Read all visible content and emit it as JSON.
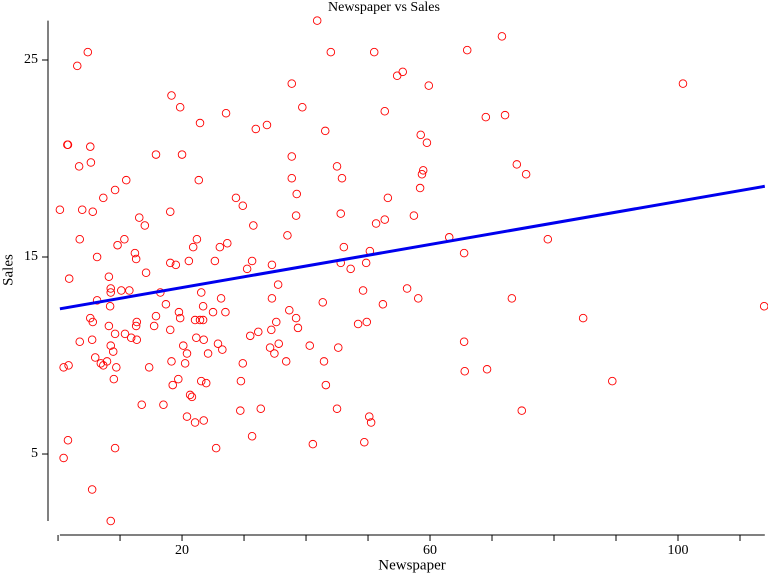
{
  "chart_data": {
    "type": "scatter",
    "title": "Newspaper vs Sales",
    "x_label": "Newspaper",
    "y_label": "Sales",
    "point_color": "#ff0000",
    "fit_color": "#0000ee",
    "xlim": [
      0.3,
      114
    ],
    "ylim": [
      1.6,
      27
    ],
    "xticks": [
      20,
      60,
      100
    ],
    "xminor_ticks": [
      0,
      10,
      30,
      40,
      50,
      70,
      80,
      90,
      110
    ],
    "yticks": [
      5,
      15,
      25
    ],
    "fit": {
      "x": [
        0.3,
        114
      ],
      "y": [
        12.37,
        18.59
      ]
    },
    "x": [
      0.3,
      0.9,
      0.9,
      1.6,
      1.7,
      1.8,
      1.5,
      1.6,
      3.1,
      3.4,
      3.5,
      3.5,
      3.9,
      4.8,
      5.2,
      5.3,
      5.2,
      5.6,
      5.6,
      5.5,
      6.0,
      5.5,
      6.3,
      6.3,
      6.9,
      7.3,
      7.3,
      7.9,
      8.2,
      8.4,
      8.5,
      8.5,
      8.2,
      8.5,
      8.5,
      8.9,
      9.2,
      9.0,
      9.4,
      9.2,
      9.2,
      9.6,
      10.2,
      10.7,
      11.0,
      10.8,
      11.5,
      11.8,
      12.6,
      12.7,
      12.4,
      12.6,
      12.7,
      13.1,
      13.5,
      14.0,
      14.2,
      14.7,
      15.5,
      15.8,
      15.8,
      16.5,
      17.0,
      17.4,
      18.1,
      18.1,
      18.1,
      18.3,
      18.3,
      18.5,
      19.0,
      19.4,
      19.7,
      19.7,
      19.5,
      20.0,
      20.2,
      20.5,
      20.8,
      20.8,
      21.1,
      21.3,
      21.6,
      21.8,
      22.1,
      22.1,
      22.3,
      22.4,
      22.7,
      22.9,
      22.9,
      23.1,
      23.1,
      23.4,
      23.4,
      23.5,
      23.5,
      23.9,
      24.2,
      25.0,
      25.3,
      25.5,
      25.8,
      26.1,
      26.3,
      26.5,
      27.0,
      27.1,
      27.3,
      28.7,
      29.4,
      29.5,
      29.8,
      29.8,
      30.5,
      31.0,
      31.3,
      31.3,
      31.5,
      31.9,
      32.3,
      32.7,
      33.7,
      34.2,
      34.4,
      34.5,
      34.5,
      34.9,
      35.2,
      35.5,
      35.6,
      36.8,
      37.0,
      37.3,
      37.7,
      37.7,
      37.7,
      38.4,
      38.7,
      38.4,
      38.5,
      39.4,
      40.6,
      41.1,
      41.8,
      42.7,
      42.9,
      43.1,
      43.2,
      44.0,
      45.0,
      45.2,
      45.0,
      45.6,
      45.8,
      45.6,
      46.1,
      47.2,
      48.4,
      49.2,
      49.4,
      49.7,
      49.8,
      50.2,
      50.5,
      50.3,
      51.0,
      51.3,
      52.4,
      52.7,
      52.7,
      53.2,
      54.7,
      55.6,
      56.3,
      57.4,
      58.1,
      58.4,
      58.5,
      58.7,
      58.9,
      59.5,
      59.8,
      63.1,
      65.5,
      65.5,
      65.6,
      66.0,
      69.0,
      69.2,
      71.6,
      72.1,
      73.2,
      74.0,
      74.8,
      75.5,
      79.0,
      84.7,
      89.4,
      100.8,
      113.9
    ],
    "y": [
      17.4,
      4.8,
      9.4,
      5.7,
      9.5,
      13.9,
      20.7,
      20.7,
      24.7,
      19.6,
      15.9,
      10.7,
      17.4,
      25.4,
      20.6,
      19.8,
      11.9,
      17.3,
      11.7,
      10.8,
      9.9,
      3.2,
      15.0,
      12.8,
      9.6,
      9.5,
      18.0,
      9.7,
      14.0,
      12.5,
      13.2,
      13.4,
      11.5,
      10.5,
      1.6,
      10.2,
      18.4,
      8.8,
      9.4,
      5.3,
      11.1,
      15.6,
      13.3,
      15.9,
      18.9,
      11.1,
      13.3,
      10.9,
      11.5,
      10.8,
      15.2,
      14.9,
      11.7,
      17.0,
      7.5,
      16.6,
      14.2,
      9.4,
      11.5,
      20.2,
      12.0,
      13.2,
      7.5,
      12.6,
      17.3,
      14.7,
      11.3,
      23.2,
      9.7,
      8.5,
      14.6,
      8.8,
      22.6,
      11.9,
      12.2,
      20.2,
      10.5,
      9.6,
      10.1,
      6.9,
      14.8,
      8.0,
      7.9,
      15.5,
      11.8,
      6.6,
      10.9,
      15.9,
      18.9,
      21.8,
      11.8,
      13.2,
      8.7,
      11.8,
      12.5,
      10.8,
      6.7,
      8.6,
      10.1,
      12.2,
      14.8,
      5.3,
      10.6,
      15.5,
      12.9,
      10.3,
      12.2,
      22.3,
      15.7,
      18.0,
      7.2,
      8.7,
      17.6,
      9.6,
      14.4,
      11.0,
      5.9,
      14.8,
      16.6,
      21.5,
      11.2,
      7.3,
      21.7,
      10.4,
      11.3,
      12.9,
      14.6,
      10.1,
      11.7,
      13.6,
      10.6,
      9.7,
      16.1,
      12.3,
      23.8,
      19.0,
      20.1,
      11.9,
      11.4,
      17.1,
      18.2,
      22.6,
      10.5,
      5.5,
      27.0,
      12.7,
      9.7,
      21.4,
      8.5,
      25.4,
      7.3,
      10.4,
      19.6,
      14.7,
      19.0,
      17.2,
      15.5,
      14.4,
      11.6,
      13.3,
      5.6,
      14.7,
      11.7,
      6.9,
      6.6,
      15.3,
      25.4,
      16.7,
      12.6,
      16.9,
      22.4,
      18.0,
      24.2,
      24.4,
      13.4,
      17.1,
      12.9,
      18.5,
      21.2,
      19.2,
      19.4,
      20.8,
      23.7,
      16.0,
      15.2,
      10.7,
      9.2,
      25.5,
      22.1,
      9.3,
      26.2,
      22.2,
      12.9,
      19.7,
      7.2,
      19.2,
      15.9,
      11.9,
      8.7,
      23.8,
      12.5
    ]
  }
}
